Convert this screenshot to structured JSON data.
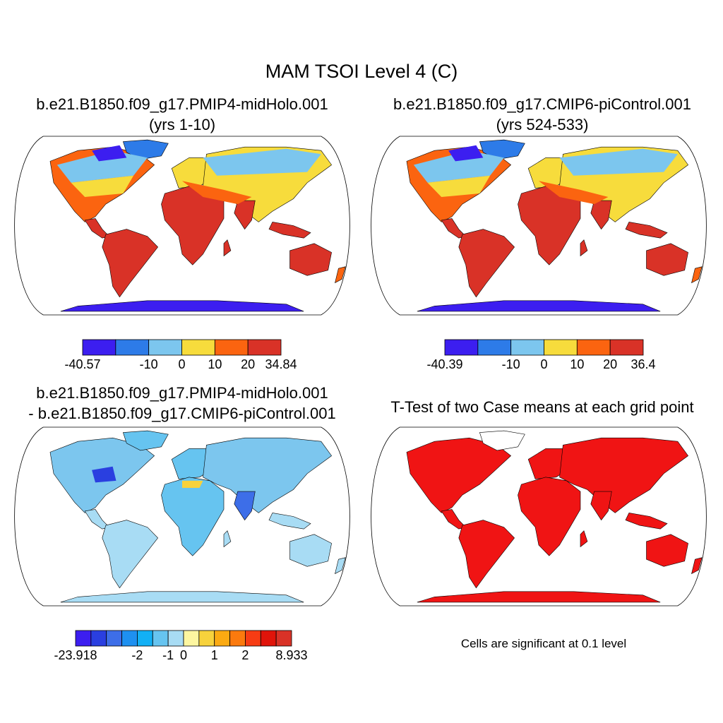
{
  "figure": {
    "title": "MAM TSOI Level 4 (C)"
  },
  "panels": [
    {
      "title_line1": "b.e21.B1850.f09_g17.PMIP4-midHolo.001",
      "title_line2": "(yrs 1-10)",
      "colorbar": {
        "colors": [
          "#3c1ef0",
          "#2d7be8",
          "#7cc6ee",
          "#f7dc3c",
          "#fb6410",
          "#d93227"
        ],
        "tick_labels": [
          "-40.57",
          "-10",
          "0",
          "10",
          "20",
          "34.84"
        ]
      }
    },
    {
      "title_line1": "b.e21.B1850.f09_g17.CMIP6-piControl.001",
      "title_line2": "(yrs 524-533)",
      "colorbar": {
        "colors": [
          "#3c1ef0",
          "#2d7be8",
          "#7cc6ee",
          "#f7dc3c",
          "#fb6410",
          "#d93227"
        ],
        "tick_labels": [
          "-40.39",
          "-10",
          "0",
          "10",
          "20",
          "36.4"
        ]
      }
    },
    {
      "title_line1": "b.e21.B1850.f09_g17.PMIP4-midHolo.001",
      "title_line2": "- b.e21.B1850.f09_g17.CMIP6-piControl.001",
      "colorbar": {
        "colors": [
          "#3c1ef0",
          "#2a3fe0",
          "#3d6ee8",
          "#1e90f0",
          "#12b0f5",
          "#66c4f0",
          "#a8dcf4",
          "#fdf6a0",
          "#f7d23c",
          "#fbaa12",
          "#fb7a0e",
          "#f73c14",
          "#e0140a",
          "#d93227"
        ],
        "tick_labels": [
          "-23.918",
          "-2",
          "-1",
          "0",
          "1",
          "2",
          "8.933"
        ]
      }
    },
    {
      "title_line1": "T-Test of two Case means at each grid point",
      "note": "Cells are significant at 0.1 level",
      "significance_color": "#f01414"
    }
  ]
}
